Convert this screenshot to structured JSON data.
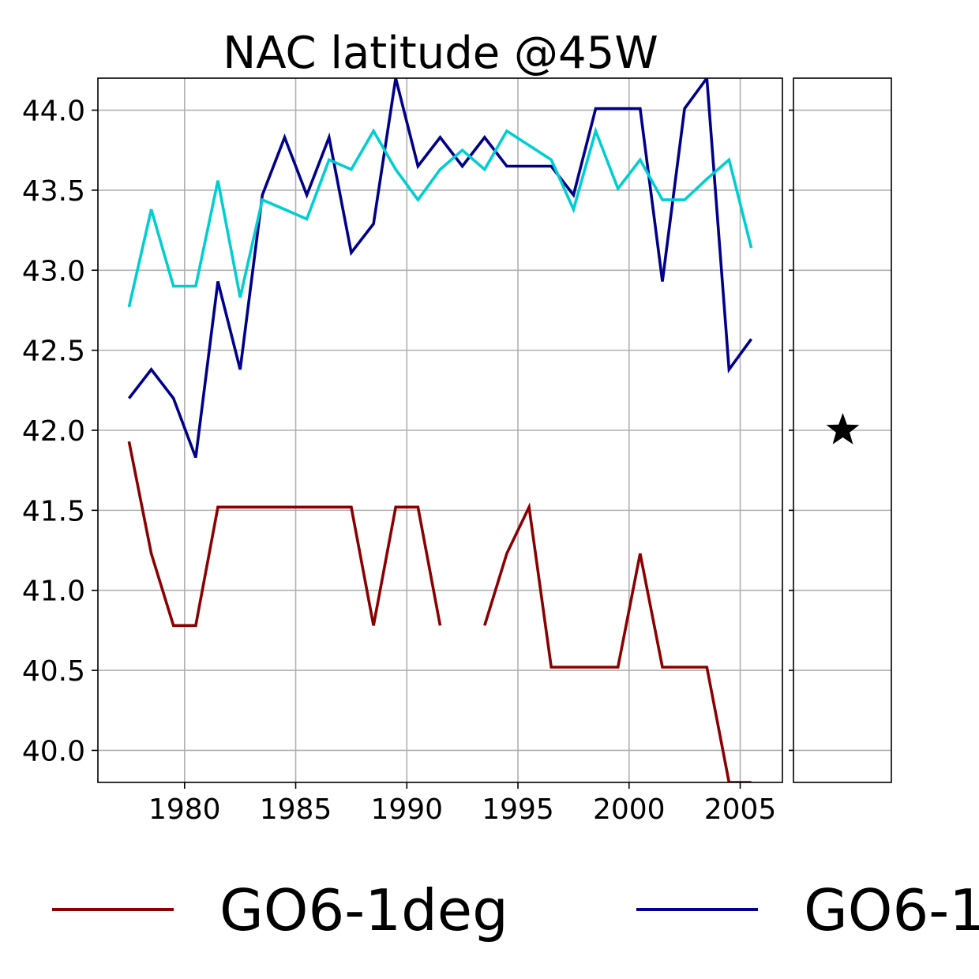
{
  "chart_data": {
    "type": "line",
    "title": "NAC latitude @45W",
    "xlabel": "",
    "ylabel": "",
    "xlim": [
      1976.1,
      2006.9
    ],
    "ylim": [
      39.8,
      44.2
    ],
    "x_ticks": [
      1980,
      1985,
      1990,
      1995,
      2000,
      2005
    ],
    "x_tick_labels": [
      "1980",
      "1985",
      "1990",
      "1995",
      "2000",
      "2005"
    ],
    "y_ticks": [
      40.0,
      40.5,
      41.0,
      41.5,
      42.0,
      42.5,
      43.0,
      43.5,
      44.0
    ],
    "y_tick_labels": [
      "40.0",
      "40.5",
      "41.0",
      "41.5",
      "42.0",
      "42.5",
      "43.0",
      "43.5",
      "44.0"
    ],
    "grid": true,
    "legend_position": "bottom",
    "legend_entries": [
      "GO6-1deg",
      "GO6-1"
    ],
    "x": [
      1977.5,
      1978.5,
      1979.5,
      1980.5,
      1981.5,
      1982.5,
      1983.5,
      1984.5,
      1985.5,
      1986.5,
      1987.5,
      1988.5,
      1989.5,
      1990.5,
      1991.5,
      1992.5,
      1993.5,
      1994.5,
      1995.5,
      1996.5,
      1997.5,
      1998.5,
      1999.5,
      2000.5,
      2001.5,
      2002.5,
      2003.5,
      2004.5,
      2005.5
    ],
    "series": [
      {
        "name": "GO6-1deg",
        "color": "#8b0000",
        "values": [
          41.93,
          41.23,
          40.78,
          40.78,
          41.52,
          41.52,
          41.52,
          41.52,
          41.52,
          41.52,
          41.52,
          40.78,
          41.52,
          41.52,
          40.78,
          null,
          40.78,
          41.23,
          41.52,
          40.52,
          40.52,
          40.52,
          40.52,
          41.23,
          40.52,
          40.52,
          40.52,
          39.8,
          39.8
        ]
      },
      {
        "name": "GO6-1",
        "color": "#00008b",
        "values": [
          42.2,
          42.38,
          42.2,
          41.83,
          42.93,
          42.38,
          43.47,
          43.83,
          43.47,
          43.83,
          43.11,
          43.29,
          44.2,
          43.65,
          43.83,
          43.65,
          43.83,
          43.65,
          43.65,
          43.65,
          43.47,
          44.01,
          44.01,
          44.01,
          42.93,
          44.01,
          44.2,
          42.38,
          42.57
        ]
      },
      {
        "name": "",
        "color": "#00ced1",
        "values": [
          42.77,
          43.38,
          42.9,
          42.9,
          43.56,
          42.83,
          43.44,
          43.38,
          43.32,
          43.69,
          43.63,
          43.87,
          43.63,
          43.44,
          43.63,
          43.75,
          43.63,
          43.87,
          43.78,
          43.69,
          43.38,
          43.87,
          43.51,
          43.69,
          43.44,
          43.44,
          43.57,
          43.69,
          43.14
        ]
      }
    ],
    "side_panel": {
      "marker": "star",
      "value": 42.0,
      "marker_color": "#000000"
    }
  }
}
